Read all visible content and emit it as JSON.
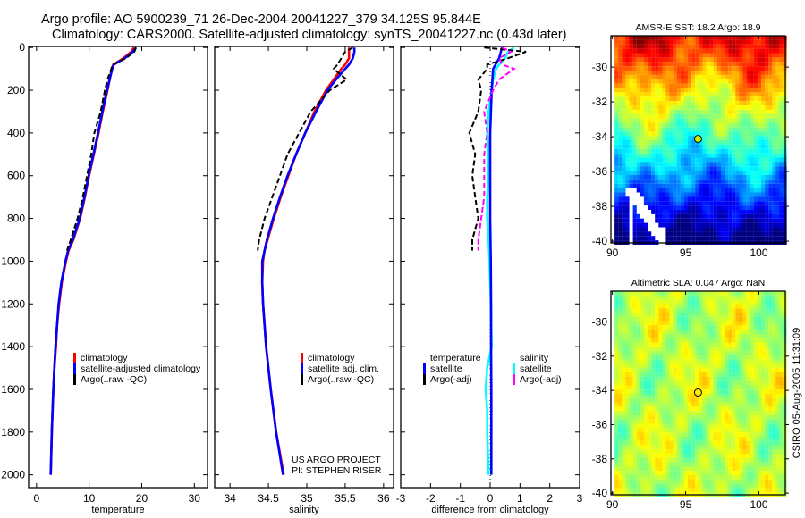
{
  "header": {
    "line1": "Argo profile: AO 5900239_71 26-Dec-2004 20041227_379 34.125S 95.844E",
    "line2": "Climatology: CARS2000. Satellite-adjusted climatology: synTS_20041227.nc (0.43d later)"
  },
  "timestamp": "CSIRO 05-Aug-2005 11:31:09",
  "colors": {
    "red": "#ff0000",
    "blue": "#0000ff",
    "black": "#000000",
    "cyan": "#00ffff",
    "magenta": "#ff00ff"
  },
  "chart_data": [
    {
      "type": "line",
      "id": "temperature",
      "xlabel": "temperature",
      "ylabel": "",
      "xlim": [
        -1.5,
        32.5
      ],
      "ylim": [
        2060,
        -5
      ],
      "xticks": [
        0,
        10,
        20,
        30
      ],
      "yticks": [
        0,
        200,
        400,
        600,
        800,
        1000,
        1200,
        1400,
        1600,
        1800,
        2000
      ],
      "legend": {
        "placement": "lower-left",
        "entries": [
          {
            "label": "climatology",
            "color": "#ff0000"
          },
          {
            "label": "satellite-adjusted climatology",
            "color": "#0000ff"
          },
          {
            "label": "Argo(..raw -QC)",
            "color": "#000000"
          }
        ]
      },
      "series": [
        {
          "name": "climatology",
          "color": "#ff0000",
          "dash": false,
          "depth": [
            0,
            20,
            50,
            80,
            100,
            150,
            200,
            300,
            400,
            500,
            600,
            700,
            800,
            900,
            950,
            1000,
            1100,
            1200,
            1300,
            1400,
            1500,
            1600,
            1800,
            2000
          ],
          "values": [
            18.5,
            18.0,
            16.5,
            14.6,
            14.3,
            13.9,
            13.5,
            12.6,
            11.8,
            10.9,
            10.0,
            9.2,
            8.3,
            7.0,
            6.1,
            5.6,
            4.8,
            4.3,
            3.9,
            3.7,
            3.4,
            3.2,
            2.9,
            2.7
          ]
        },
        {
          "name": "satellite-adjusted climatology",
          "color": "#0000ff",
          "dash": false,
          "depth": [
            0,
            20,
            50,
            80,
            100,
            150,
            200,
            300,
            400,
            500,
            600,
            700,
            800,
            900,
            950,
            1000,
            1100,
            1200,
            1300,
            1400,
            1500,
            1600,
            1800,
            2000
          ],
          "values": [
            18.9,
            18.3,
            16.8,
            14.7,
            14.4,
            13.9,
            13.4,
            12.5,
            11.7,
            10.8,
            9.9,
            9.1,
            8.2,
            6.9,
            6.0,
            5.5,
            4.7,
            4.2,
            3.9,
            3.6,
            3.4,
            3.2,
            2.9,
            2.7
          ]
        },
        {
          "name": "Argo(..raw -QC)",
          "color": "#000000",
          "dash": true,
          "depth": [
            0,
            20,
            50,
            80,
            100,
            150,
            200,
            300,
            400,
            500,
            600,
            700,
            800,
            900,
            950
          ],
          "values": [
            18.9,
            18.6,
            17.0,
            14.5,
            14.2,
            13.5,
            13.0,
            12.2,
            11.0,
            10.4,
            9.6,
            8.8,
            7.8,
            6.5,
            5.8
          ]
        }
      ]
    },
    {
      "type": "line",
      "id": "salinity",
      "xlabel": "salinity",
      "xlim": [
        33.8,
        36.13
      ],
      "ylim": [
        2060,
        -5
      ],
      "xticks": [
        34,
        34.5,
        35,
        35.5,
        36
      ],
      "legend": {
        "placement": "lower-right",
        "entries": [
          {
            "label": "climatology",
            "color": "#ff0000"
          },
          {
            "label": "satellite adj. clim.",
            "color": "#0000ff"
          },
          {
            "label": "Argo(..raw -QC)",
            "color": "#000000"
          }
        ]
      },
      "annotation": [
        "US ARGO PROJECT",
        "PI: STEPHEN RISER"
      ],
      "series": [
        {
          "name": "climatology",
          "color": "#ff0000",
          "dash": false,
          "depth": [
            0,
            20,
            50,
            80,
            100,
            150,
            200,
            300,
            400,
            500,
            600,
            700,
            800,
            900,
            950,
            1000,
            1100,
            1200,
            1300,
            1400,
            1500,
            1600,
            1800,
            2000
          ],
          "values": [
            35.55,
            35.55,
            35.55,
            35.5,
            35.45,
            35.35,
            35.25,
            35.1,
            34.98,
            34.86,
            34.76,
            34.66,
            34.57,
            34.49,
            34.45,
            34.43,
            34.42,
            34.43,
            34.45,
            34.47,
            34.5,
            34.53,
            34.6,
            34.7
          ]
        },
        {
          "name": "satellite adj. clim.",
          "color": "#0000ff",
          "dash": false,
          "depth": [
            0,
            20,
            50,
            80,
            100,
            150,
            200,
            300,
            400,
            500,
            600,
            700,
            800,
            900,
            950,
            1000,
            1100,
            1200,
            1300,
            1400,
            1500,
            1600,
            1800,
            2000
          ],
          "values": [
            35.62,
            35.62,
            35.6,
            35.55,
            35.5,
            35.38,
            35.27,
            35.12,
            34.98,
            34.86,
            34.75,
            34.65,
            34.56,
            34.48,
            34.45,
            34.42,
            34.42,
            34.43,
            34.45,
            34.47,
            34.5,
            34.53,
            34.6,
            34.69
          ]
        },
        {
          "name": "Argo(..raw -QC)",
          "color": "#000000",
          "dash": true,
          "depth": [
            0,
            20,
            50,
            80,
            100,
            150,
            200,
            300,
            400,
            500,
            600,
            700,
            800,
            900,
            950
          ],
          "values": [
            35.6,
            35.5,
            35.45,
            35.4,
            35.35,
            35.52,
            35.3,
            35.05,
            34.9,
            34.75,
            34.65,
            34.55,
            34.45,
            34.38,
            34.36
          ]
        }
      ]
    },
    {
      "type": "line",
      "id": "difference",
      "xlabel": "difference from climatology",
      "xlim": [
        -3,
        3
      ],
      "ylim": [
        2060,
        -5
      ],
      "xticks": [
        -3,
        -2,
        -1,
        0,
        1,
        2,
        3
      ],
      "legend": {
        "placement": "lower-center",
        "groups": [
          {
            "title": "temperature",
            "entries": [
              {
                "label": "satellite",
                "color": "#0000ff"
              },
              {
                "label": "Argo(-adj)",
                "color": "#000000"
              }
            ]
          },
          {
            "title": "salinity",
            "entries": [
              {
                "label": "satellite",
                "color": "#00ffff"
              },
              {
                "label": "Argo(-adj)",
                "color": "#ff00ff"
              }
            ]
          }
        ]
      },
      "series": [
        {
          "name": "salinity satellite",
          "color": "#00ffff",
          "dash": false,
          "depth": [
            0,
            20,
            50,
            80,
            100,
            150,
            200,
            300,
            400,
            500,
            600,
            700,
            800,
            900,
            1000,
            1200,
            1400,
            1500,
            1600,
            1700,
            1800,
            2000
          ],
          "values": [
            0.8,
            0.6,
            0.5,
            0.3,
            0.2,
            0.1,
            0.05,
            -0.05,
            -0.1,
            -0.05,
            -0.05,
            -0.1,
            -0.1,
            -0.05,
            -0.02,
            0.02,
            0.05,
            -0.1,
            -0.15,
            -0.1,
            -0.1,
            -0.05
          ]
        },
        {
          "name": "temperature satellite",
          "color": "#0000ff",
          "dash": false,
          "depth": [
            0,
            50,
            100,
            200,
            400,
            600,
            800,
            1000,
            1200,
            1400,
            1600,
            1800,
            2000
          ],
          "values": [
            0.4,
            0.3,
            0.1,
            0.05,
            0.0,
            0.0,
            0.0,
            0.02,
            0.03,
            0.03,
            0.04,
            0.04,
            0.04
          ]
        },
        {
          "name": "temperature Argo(-adj)",
          "color": "#000000",
          "dash": true,
          "depth": [
            0,
            20,
            50,
            80,
            100,
            150,
            200,
            300,
            400,
            500,
            600,
            700,
            800,
            900,
            950
          ],
          "values": [
            -0.2,
            1.2,
            0.6,
            -0.1,
            -0.1,
            -0.4,
            -0.3,
            -0.4,
            -0.7,
            -0.5,
            -0.6,
            -0.5,
            -0.4,
            -0.6,
            -0.6
          ]
        },
        {
          "name": "salinity Argo(-adj)",
          "color": "#ff00ff",
          "dash": true,
          "depth": [
            0,
            20,
            50,
            80,
            100,
            150,
            200,
            300,
            400,
            500,
            600,
            700,
            800,
            900,
            950
          ],
          "values": [
            0.4,
            0.7,
            0.3,
            0.4,
            0.8,
            0.3,
            0.1,
            -0.2,
            -0.1,
            -0.2,
            -0.2,
            -0.2,
            -0.3,
            -0.4,
            -0.4
          ]
        }
      ]
    },
    {
      "type": "heatmap",
      "id": "sst-map",
      "title": "AMSR-E SST: 18.2 Argo: 18.9",
      "field": "sst",
      "xlim": [
        89.9,
        101.8
      ],
      "ylim": [
        -40.1,
        -28.2
      ],
      "xticks": [
        90,
        95,
        100
      ],
      "yticks": [
        -30,
        -32,
        -34,
        -36,
        -38,
        -40
      ],
      "float": {
        "lon": 95.844,
        "lat": -34.125,
        "color": "#c8f000"
      }
    },
    {
      "type": "heatmap",
      "id": "sla-map",
      "title": "Altimetric SLA: 0.047 Argo: NaN",
      "field": "sla",
      "xlim": [
        89.9,
        101.8
      ],
      "ylim": [
        -40.1,
        -28.2
      ],
      "xticks": [
        90,
        95,
        100
      ],
      "yticks": [
        -30,
        -32,
        -34,
        -36,
        -38,
        -40
      ],
      "float": {
        "lon": 95.844,
        "lat": -34.125,
        "color": "none"
      }
    }
  ]
}
